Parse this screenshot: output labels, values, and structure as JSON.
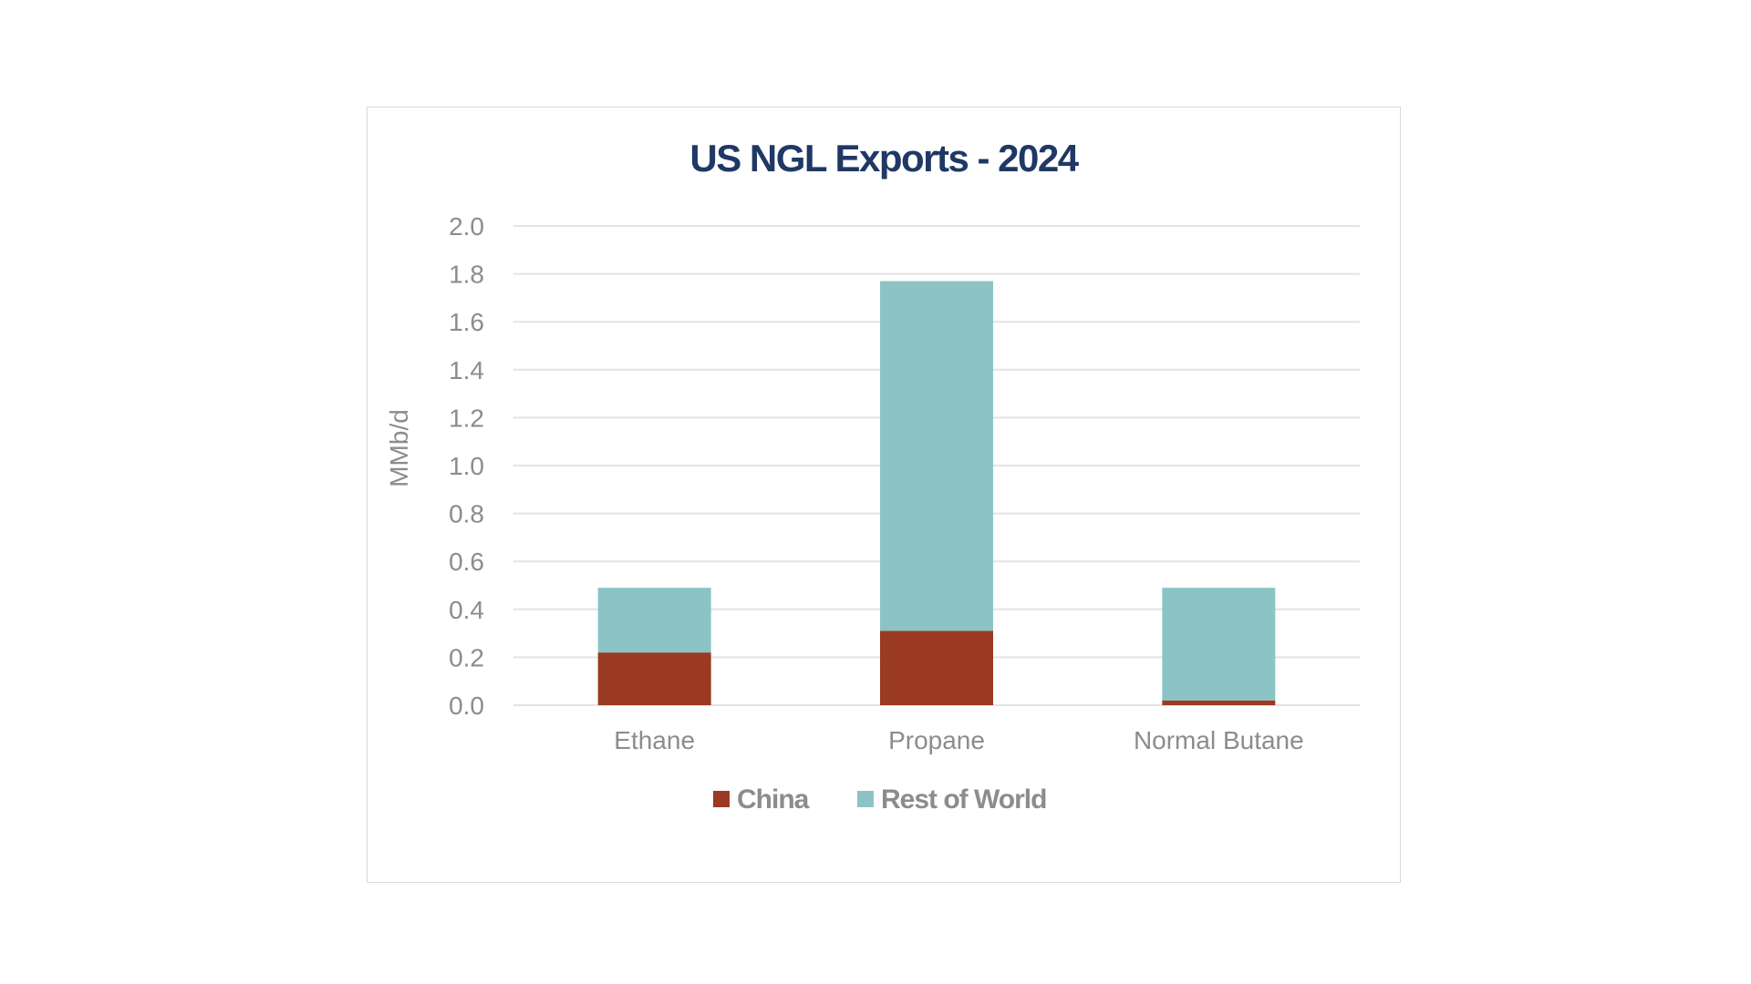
{
  "chart_data": {
    "type": "bar",
    "stacked": true,
    "title": "US NGL Exports - 2024",
    "xlabel": "",
    "ylabel": "MMb/d",
    "ylim": [
      0,
      2.0
    ],
    "yticks": [
      "0.0",
      "0.2",
      "0.4",
      "0.6",
      "0.8",
      "1.0",
      "1.2",
      "1.4",
      "1.6",
      "1.8",
      "2.0"
    ],
    "categories": [
      "Ethane",
      "Propane",
      "Normal Butane"
    ],
    "series": [
      {
        "name": "China",
        "values": [
          0.22,
          0.31,
          0.02
        ],
        "color": "#9a3a22"
      },
      {
        "name": "Rest of World",
        "values": [
          0.27,
          1.46,
          0.47
        ],
        "color": "#8cc4c6"
      }
    ],
    "grid": true,
    "legend": "bottom"
  }
}
